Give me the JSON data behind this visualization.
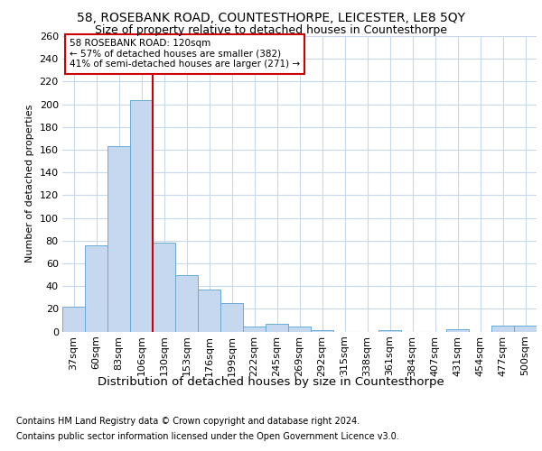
{
  "title1": "58, ROSEBANK ROAD, COUNTESTHORPE, LEICESTER, LE8 5QY",
  "title2": "Size of property relative to detached houses in Countesthorpe",
  "xlabel": "Distribution of detached houses by size in Countesthorpe",
  "ylabel": "Number of detached properties",
  "footnote1": "Contains HM Land Registry data © Crown copyright and database right 2024.",
  "footnote2": "Contains public sector information licensed under the Open Government Licence v3.0.",
  "annotation_line1": "58 ROSEBANK ROAD: 120sqm",
  "annotation_line2": "← 57% of detached houses are smaller (382)",
  "annotation_line3": "41% of semi-detached houses are larger (271) →",
  "bar_labels": [
    "37sqm",
    "60sqm",
    "83sqm",
    "106sqm",
    "130sqm",
    "153sqm",
    "176sqm",
    "199sqm",
    "222sqm",
    "245sqm",
    "269sqm",
    "292sqm",
    "315sqm",
    "338sqm",
    "361sqm",
    "384sqm",
    "407sqm",
    "431sqm",
    "454sqm",
    "477sqm",
    "500sqm"
  ],
  "bar_values": [
    22,
    76,
    163,
    204,
    78,
    50,
    37,
    25,
    4,
    7,
    4,
    1,
    0,
    0,
    1,
    0,
    0,
    2,
    0,
    5,
    5
  ],
  "bar_color": "#c5d8f0",
  "bar_edge_color": "#6aaad4",
  "vline_color": "#cc0000",
  "vline_position": 3.5,
  "annotation_box_edge_color": "#cc0000",
  "background_color": "#ffffff",
  "grid_color": "#c8d8ec",
  "ylim": [
    0,
    260
  ],
  "yticks": [
    0,
    20,
    40,
    60,
    80,
    100,
    120,
    140,
    160,
    180,
    200,
    220,
    240,
    260
  ],
  "title1_fontsize": 10,
  "title2_fontsize": 9,
  "xlabel_fontsize": 9.5,
  "ylabel_fontsize": 8,
  "tick_fontsize": 8,
  "footnote_fontsize": 7
}
